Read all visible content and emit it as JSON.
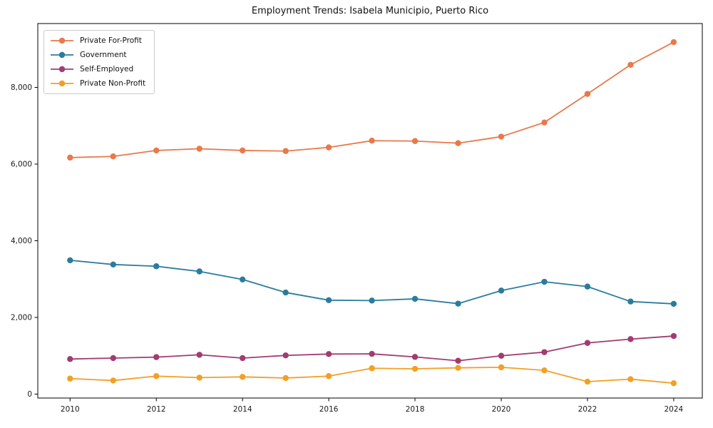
{
  "chart_data": {
    "type": "line",
    "title": "Employment Trends: Isabela Municipio, Puerto Rico",
    "x": [
      2010,
      2011,
      2012,
      2013,
      2014,
      2015,
      2016,
      2017,
      2018,
      2019,
      2020,
      2021,
      2022,
      2023,
      2024
    ],
    "series": [
      {
        "name": "Private For-Profit",
        "color": "#E8794A",
        "values": [
          6170,
          6200,
          6355,
          6400,
          6355,
          6340,
          6435,
          6610,
          6600,
          6545,
          6715,
          7085,
          7830,
          8590,
          9180
        ]
      },
      {
        "name": "Government",
        "color": "#2A7C9E",
        "values": [
          3490,
          3380,
          3335,
          3200,
          2990,
          2650,
          2450,
          2440,
          2485,
          2360,
          2700,
          2930,
          2805,
          2415,
          2355
        ]
      },
      {
        "name": "Self-Employed",
        "color": "#A23B72",
        "values": [
          915,
          940,
          965,
          1025,
          940,
          1010,
          1045,
          1050,
          970,
          870,
          1000,
          1095,
          1335,
          1435,
          1515
        ]
      },
      {
        "name": "Private Non-Profit",
        "color": "#F2A024",
        "values": [
          405,
          355,
          470,
          430,
          450,
          420,
          470,
          675,
          660,
          685,
          700,
          620,
          325,
          390,
          285
        ]
      }
    ],
    "xlabel": "",
    "ylabel": "",
    "xlim": [
      2009.25,
      2024.7
    ],
    "ylim": [
      0,
      9660
    ],
    "grid": false,
    "legend_position": "upper-left",
    "x_axis": {
      "ticks": [
        2010,
        2012,
        2014,
        2016,
        2018,
        2020,
        2022,
        2024
      ],
      "labels": [
        "2010",
        "2012",
        "2014",
        "2016",
        "2018",
        "2020",
        "2022",
        "2024"
      ]
    },
    "y_axis": {
      "ticks": [
        0,
        2000,
        4000,
        6000,
        8000
      ],
      "labels": [
        "0",
        "2,000",
        "4,000",
        "6,000",
        "8,000"
      ]
    }
  }
}
